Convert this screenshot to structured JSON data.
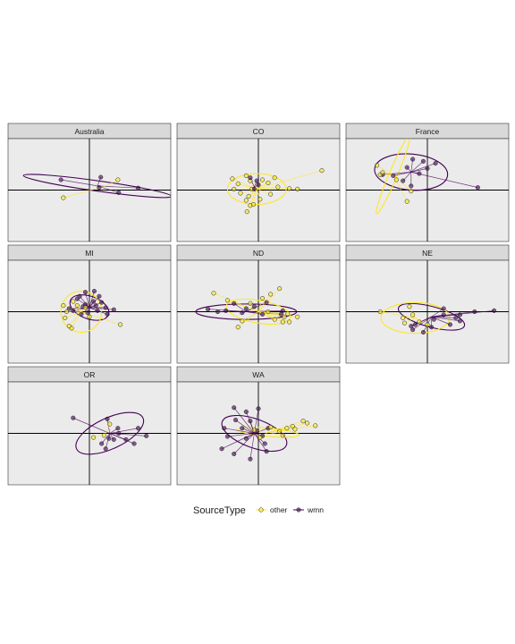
{
  "chart_data": {
    "type": "scatter",
    "facet_labels": [
      "Australia",
      "CO",
      "France",
      "MI",
      "ND",
      "NE",
      "OR",
      "WA"
    ],
    "legend": {
      "title": "SourceType",
      "placement": "bottom",
      "entries": [
        {
          "label": "other",
          "color": "#FDE725"
        },
        {
          "label": "wmn",
          "color": "#440154"
        }
      ]
    },
    "colors": {
      "other": "#FDE725",
      "wmn": "#440154",
      "panel_bg": "#EBEBEB",
      "strip_bg": "#D9D9D9"
    },
    "xlim": [
      -1,
      1
    ],
    "ylim": [
      -1,
      1
    ],
    "panels": [
      {
        "label": "Australia",
        "groups": [
          {
            "name": "wmn",
            "centroid": [
              0.1,
              0.08
            ],
            "ellipse": {
              "rx": 0.92,
              "ry": 0.1,
              "angle": -8
            },
            "points": [
              [
                -0.35,
                0.2
              ],
              [
                0.14,
                0.25
              ],
              [
                0.6,
                0.04
              ],
              [
                0.36,
                -0.05
              ],
              [
                0.12,
                0.05
              ]
            ]
          },
          {
            "name": "other",
            "centroid": [
              0.2,
              0.08
            ],
            "ellipse": null,
            "points": [
              [
                -0.32,
                -0.15
              ],
              [
                0.35,
                0.2
              ]
            ]
          }
        ]
      },
      {
        "label": "CO",
        "groups": [
          {
            "name": "other",
            "centroid": [
              -0.02,
              0.02
            ],
            "ellipse": {
              "rx": 0.36,
              "ry": 0.3,
              "angle": 0
            },
            "points": [
              [
                0.78,
                0.38
              ],
              [
                0.38,
                0.03
              ],
              [
                0.48,
                0.02
              ],
              [
                0.24,
                0.06
              ],
              [
                0.15,
                -0.08
              ],
              [
                0.05,
                0.2
              ],
              [
                -0.1,
                0.18
              ],
              [
                -0.15,
                0.28
              ],
              [
                -0.25,
                0.12
              ],
              [
                -0.3,
                0.02
              ],
              [
                -0.22,
                -0.06
              ],
              [
                -0.15,
                -0.2
              ],
              [
                -0.1,
                -0.3
              ],
              [
                -0.14,
                -0.42
              ],
              [
                -0.06,
                -0.28
              ],
              [
                0.02,
                -0.18
              ],
              [
                0.12,
                0.14
              ],
              [
                -0.08,
                0.02
              ],
              [
                0.2,
                0.24
              ],
              [
                -0.32,
                0.22
              ],
              [
                -0.12,
                -0.12
              ]
            ]
          },
          {
            "name": "wmn",
            "centroid": [
              -0.05,
              0.06
            ],
            "ellipse": null,
            "points": [
              [
                -0.1,
                0.24
              ],
              [
                0.0,
                0.1
              ],
              [
                -0.05,
                0.02
              ],
              [
                -0.02,
                0.18
              ]
            ]
          }
        ]
      },
      {
        "label": "France",
        "groups": [
          {
            "name": "wmn",
            "centroid": [
              -0.2,
              0.35
            ],
            "ellipse": {
              "rx": 0.45,
              "ry": 0.35,
              "angle": -5
            },
            "points": [
              [
                0.1,
                0.52
              ],
              [
                0.0,
                0.42
              ],
              [
                -0.18,
                0.6
              ],
              [
                -0.1,
                0.32
              ],
              [
                -0.2,
                0.08
              ],
              [
                -0.42,
                0.28
              ],
              [
                -0.55,
                0.3
              ],
              [
                -0.3,
                0.18
              ],
              [
                0.62,
                0.05
              ],
              [
                -0.25,
                0.44
              ],
              [
                -0.05,
                0.56
              ]
            ]
          },
          {
            "name": "other",
            "centroid": [
              -0.42,
              0.3
            ],
            "ellipse": {
              "rx": 0.52,
              "ry": 0.08,
              "angle": 67
            },
            "points": [
              [
                -0.62,
                0.48
              ],
              [
                -0.58,
                0.3
              ],
              [
                -0.38,
                0.2
              ],
              [
                -0.25,
                -0.22
              ],
              [
                -0.55,
                0.34
              ],
              [
                -0.2,
                -0.02
              ]
            ]
          }
        ]
      },
      {
        "label": "MI",
        "groups": [
          {
            "name": "wmn",
            "centroid": [
              0.0,
              0.08
            ],
            "ellipse": {
              "rx": 0.25,
              "ry": 0.22,
              "angle": -20
            },
            "points": [
              [
                -0.05,
                0.38
              ],
              [
                0.12,
                0.3
              ],
              [
                0.06,
                0.4
              ],
              [
                -0.15,
                0.25
              ],
              [
                -0.2,
                0.02
              ],
              [
                -0.08,
                0.1
              ],
              [
                0.1,
                0.02
              ],
              [
                0.2,
                0.08
              ],
              [
                0.3,
                0.04
              ],
              [
                0.22,
                -0.05
              ],
              [
                -0.1,
                -0.05
              ],
              [
                0.05,
                0.2
              ],
              [
                -0.12,
                0.3
              ],
              [
                0.08,
                0.12
              ],
              [
                -0.25,
                0.06
              ],
              [
                -0.02,
                -0.02
              ],
              [
                0.15,
                0.18
              ],
              [
                -0.05,
                0.14
              ]
            ]
          },
          {
            "name": "other",
            "centroid": [
              -0.1,
              0.0
            ],
            "ellipse": {
              "rx": 0.25,
              "ry": 0.4,
              "angle": 10
            },
            "points": [
              [
                -0.32,
                0.12
              ],
              [
                -0.28,
                0.0
              ],
              [
                -0.3,
                -0.12
              ],
              [
                -0.22,
                -0.32
              ],
              [
                -0.25,
                -0.28
              ],
              [
                0.38,
                -0.25
              ],
              [
                -0.15,
                0.12
              ],
              [
                -0.05,
                0.08
              ],
              [
                0.0,
                -0.1
              ],
              [
                -0.2,
                0.2
              ]
            ]
          }
        ]
      },
      {
        "label": "ND",
        "groups": [
          {
            "name": "wmn",
            "centroid": [
              -0.15,
              0.0
            ],
            "ellipse": {
              "rx": 0.62,
              "ry": 0.15,
              "angle": 0
            },
            "points": [
              [
                -0.62,
                0.05
              ],
              [
                -0.4,
                0.02
              ],
              [
                -0.3,
                0.16
              ],
              [
                -0.2,
                -0.02
              ],
              [
                -0.05,
                0.1
              ],
              [
                0.1,
                0.18
              ],
              [
                0.05,
                -0.05
              ],
              [
                0.28,
                -0.05
              ],
              [
                0.3,
                0.02
              ],
              [
                -0.5,
                0.0
              ],
              [
                -0.15,
                0.06
              ]
            ]
          },
          {
            "name": "other",
            "centroid": [
              0.0,
              0.0
            ],
            "ellipse": {
              "rx": 0.4,
              "ry": 0.22,
              "angle": -10
            },
            "points": [
              [
                -0.55,
                0.36
              ],
              [
                0.15,
                0.34
              ],
              [
                0.26,
                0.45
              ],
              [
                0.05,
                0.26
              ],
              [
                0.32,
                -0.1
              ],
              [
                0.38,
                -0.2
              ],
              [
                0.48,
                -0.1
              ],
              [
                0.36,
                -0.04
              ],
              [
                -0.25,
                -0.3
              ],
              [
                -0.2,
                -0.18
              ],
              [
                0.2,
                -0.15
              ],
              [
                0.3,
                -0.2
              ],
              [
                -0.1,
                0.16
              ],
              [
                -0.38,
                0.22
              ],
              [
                0.12,
                0.0
              ]
            ]
          }
        ]
      },
      {
        "label": "NE",
        "groups": [
          {
            "name": "wmn",
            "centroid": [
              0.05,
              -0.1
            ],
            "ellipse": {
              "rx": 0.42,
              "ry": 0.2,
              "angle": -15
            },
            "points": [
              [
                0.82,
                0.02
              ],
              [
                0.58,
                0.0
              ],
              [
                0.4,
                -0.06
              ],
              [
                0.4,
                -0.18
              ],
              [
                0.2,
                -0.06
              ],
              [
                0.28,
                -0.25
              ],
              [
                0.08,
                -0.15
              ],
              [
                -0.05,
                -0.4
              ],
              [
                -0.18,
                -0.35
              ],
              [
                -0.2,
                -0.28
              ],
              [
                -0.15,
                -0.25
              ],
              [
                0.05,
                -0.3
              ],
              [
                0.35,
                -0.12
              ],
              [
                0.2,
                0.06
              ]
            ]
          },
          {
            "name": "other",
            "centroid": [
              -0.15,
              -0.12
            ],
            "ellipse": {
              "rx": 0.42,
              "ry": 0.3,
              "angle": 0
            },
            "points": [
              [
                -0.58,
                0.0
              ],
              [
                -0.22,
                0.1
              ],
              [
                -0.18,
                -0.06
              ],
              [
                -0.28,
                -0.22
              ],
              [
                -0.1,
                -0.2
              ],
              [
                -0.3,
                -0.12
              ],
              [
                0.0,
                -0.25
              ]
            ]
          }
        ]
      },
      {
        "label": "OR",
        "groups": [
          {
            "name": "wmn",
            "centroid": [
              0.25,
              0.0
            ],
            "ellipse": {
              "rx": 0.45,
              "ry": 0.3,
              "angle": 25
            },
            "points": [
              [
                -0.2,
                0.3
              ],
              [
                0.22,
                0.28
              ],
              [
                0.36,
                0.0
              ],
              [
                0.24,
                -0.1
              ],
              [
                0.15,
                -0.2
              ],
              [
                0.3,
                -0.12
              ],
              [
                0.45,
                -0.12
              ],
              [
                0.7,
                -0.05
              ],
              [
                0.55,
                -0.2
              ],
              [
                0.2,
                -0.3
              ],
              [
                0.6,
                0.1
              ],
              [
                0.35,
                0.1
              ]
            ]
          },
          {
            "name": "other",
            "centroid": [
              0.2,
              0.0
            ],
            "ellipse": null,
            "points": [
              [
                0.05,
                -0.08
              ],
              [
                0.25,
                0.18
              ],
              [
                0.18,
                -0.04
              ]
            ]
          }
        ]
      },
      {
        "label": "WA",
        "groups": [
          {
            "name": "wmn",
            "centroid": [
              -0.05,
              0.0
            ],
            "ellipse": {
              "rx": 0.42,
              "ry": 0.28,
              "angle": -20
            },
            "points": [
              [
                -0.3,
                0.5
              ],
              [
                -0.15,
                0.42
              ],
              [
                0.0,
                0.48
              ],
              [
                -0.42,
                0.1
              ],
              [
                -0.38,
                -0.06
              ],
              [
                -0.45,
                -0.3
              ],
              [
                -0.3,
                -0.4
              ],
              [
                -0.1,
                -0.5
              ],
              [
                0.1,
                -0.35
              ],
              [
                0.08,
                -0.2
              ],
              [
                -0.2,
                0.1
              ],
              [
                -0.1,
                0.24
              ],
              [
                0.12,
                0.1
              ],
              [
                -0.02,
                0.05
              ],
              [
                -0.15,
                -0.1
              ],
              [
                0.05,
                -0.05
              ],
              [
                -0.28,
                0.26
              ]
            ]
          },
          {
            "name": "other",
            "centroid": [
              0.12,
              0.02
            ],
            "ellipse": {
              "rx": 0.38,
              "ry": 0.08,
              "angle": -5
            },
            "points": [
              [
                0.6,
                0.2
              ],
              [
                0.7,
                0.15
              ],
              [
                0.55,
                0.24
              ],
              [
                0.42,
                0.14
              ],
              [
                0.35,
                0.1
              ],
              [
                0.26,
                0.04
              ],
              [
                0.15,
                0.12
              ],
              [
                -0.05,
                0.06
              ],
              [
                0.02,
                -0.08
              ],
              [
                0.3,
                -0.04
              ],
              [
                0.45,
                0.08
              ]
            ]
          }
        ]
      }
    ]
  }
}
